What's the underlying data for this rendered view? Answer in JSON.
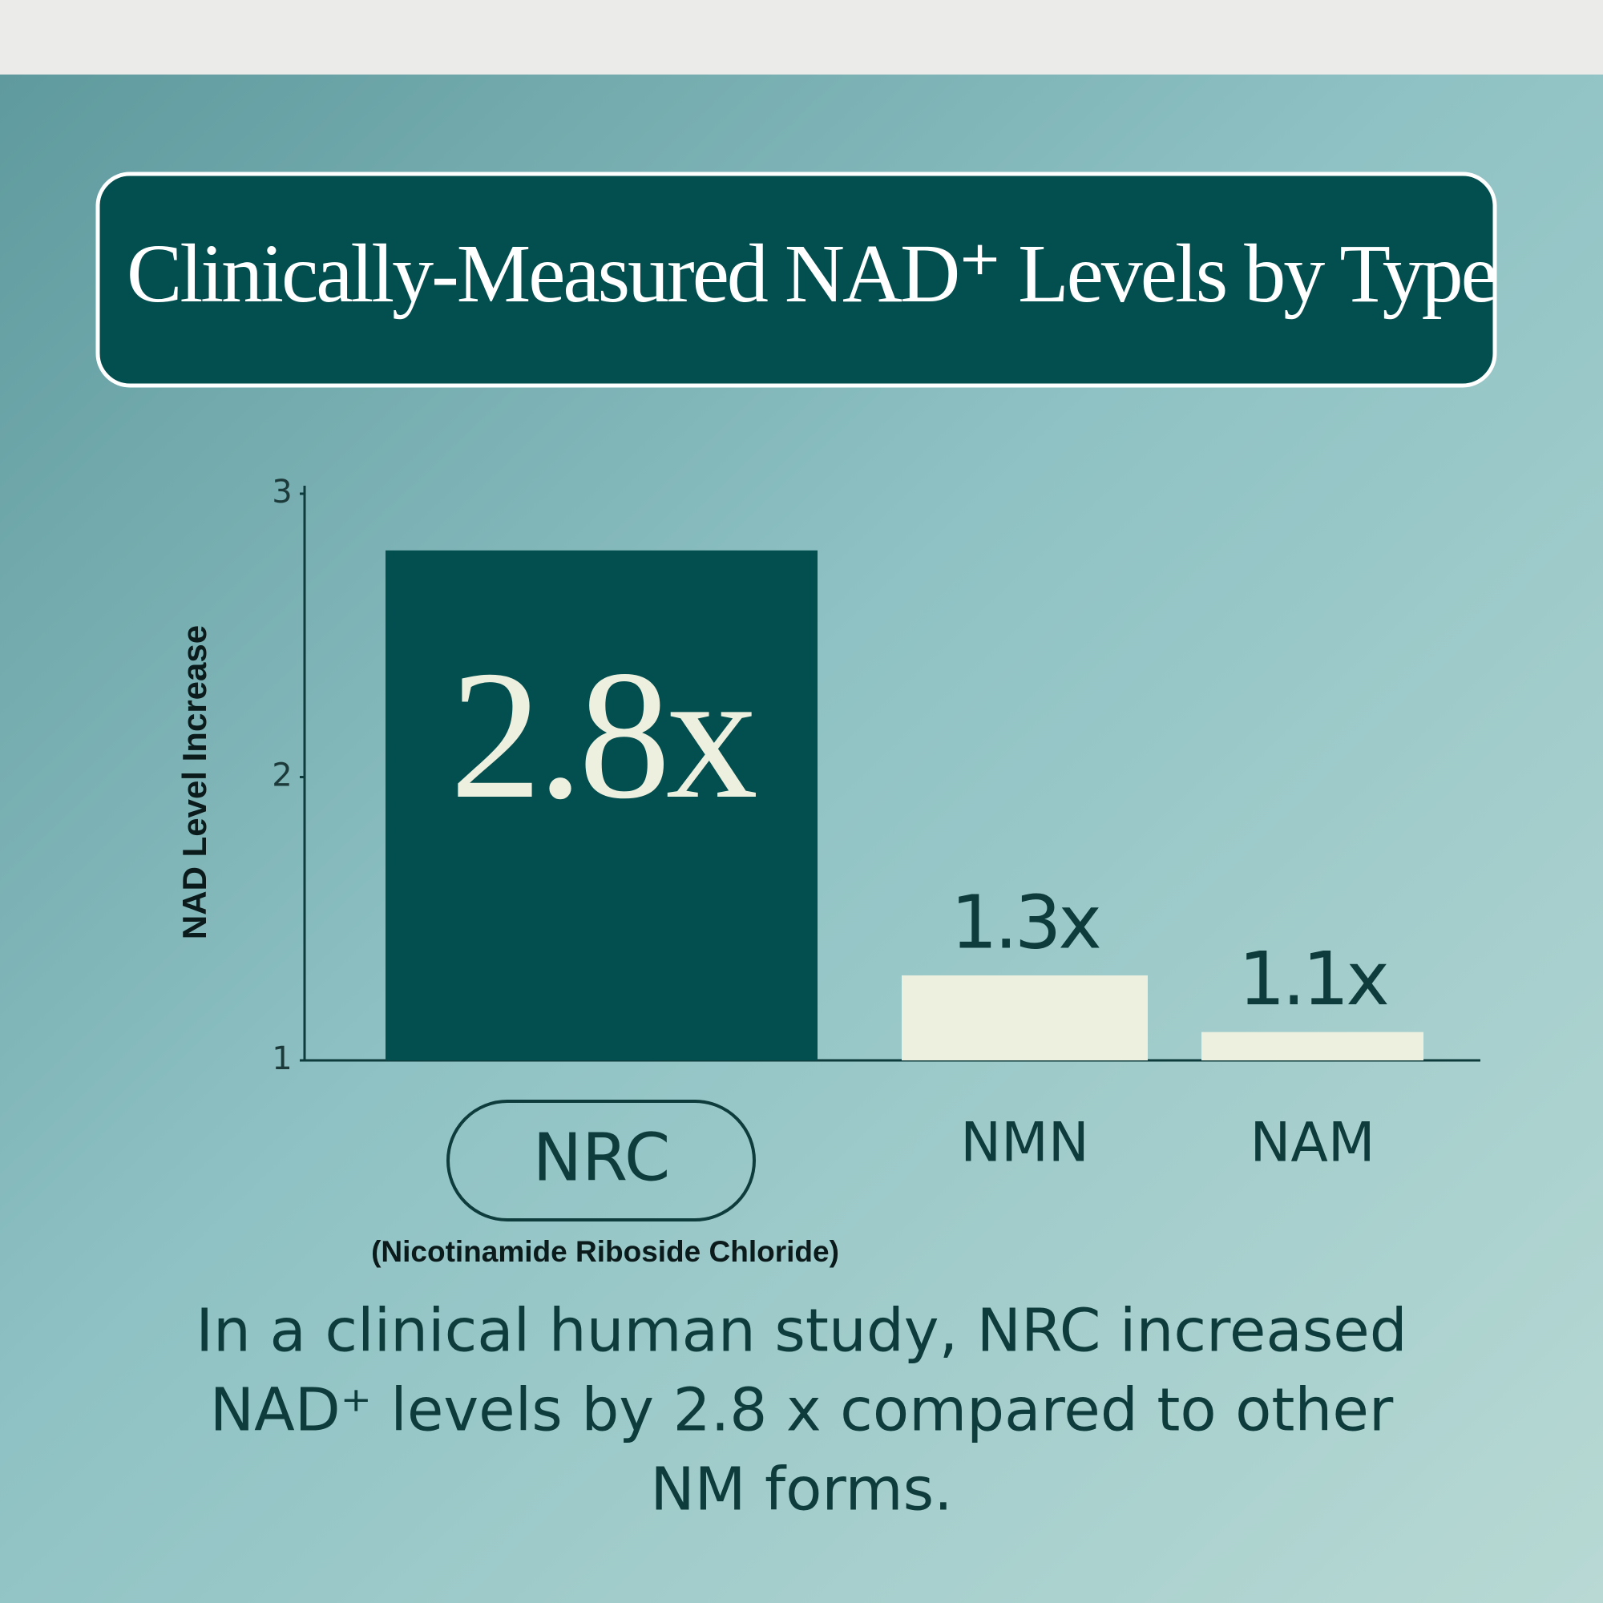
{
  "chart_data": {
    "type": "bar",
    "title": "Clinically-Measured NAD⁺ Levels by Type",
    "y_label": "NAD Level Increase",
    "categories": [
      "NRC",
      "NMN",
      "NAM"
    ],
    "values": [
      2.8,
      1.3,
      1.1
    ],
    "value_labels": [
      "2.8x",
      "1.3x",
      "1.1x"
    ],
    "colors": [
      "#034e4e",
      "#eef0df",
      "#eef0df"
    ],
    "highlight_index": 0,
    "annotations": [
      "(Nicotinamide Riboside Chloride)"
    ],
    "ylim": [
      1,
      3
    ],
    "yticks": [
      1,
      2,
      3
    ],
    "grid": false,
    "caption": [
      "In a clinical human study, NRC increased",
      "NAD⁺ levels by 2.8 x compared to other",
      "NM forms."
    ]
  }
}
